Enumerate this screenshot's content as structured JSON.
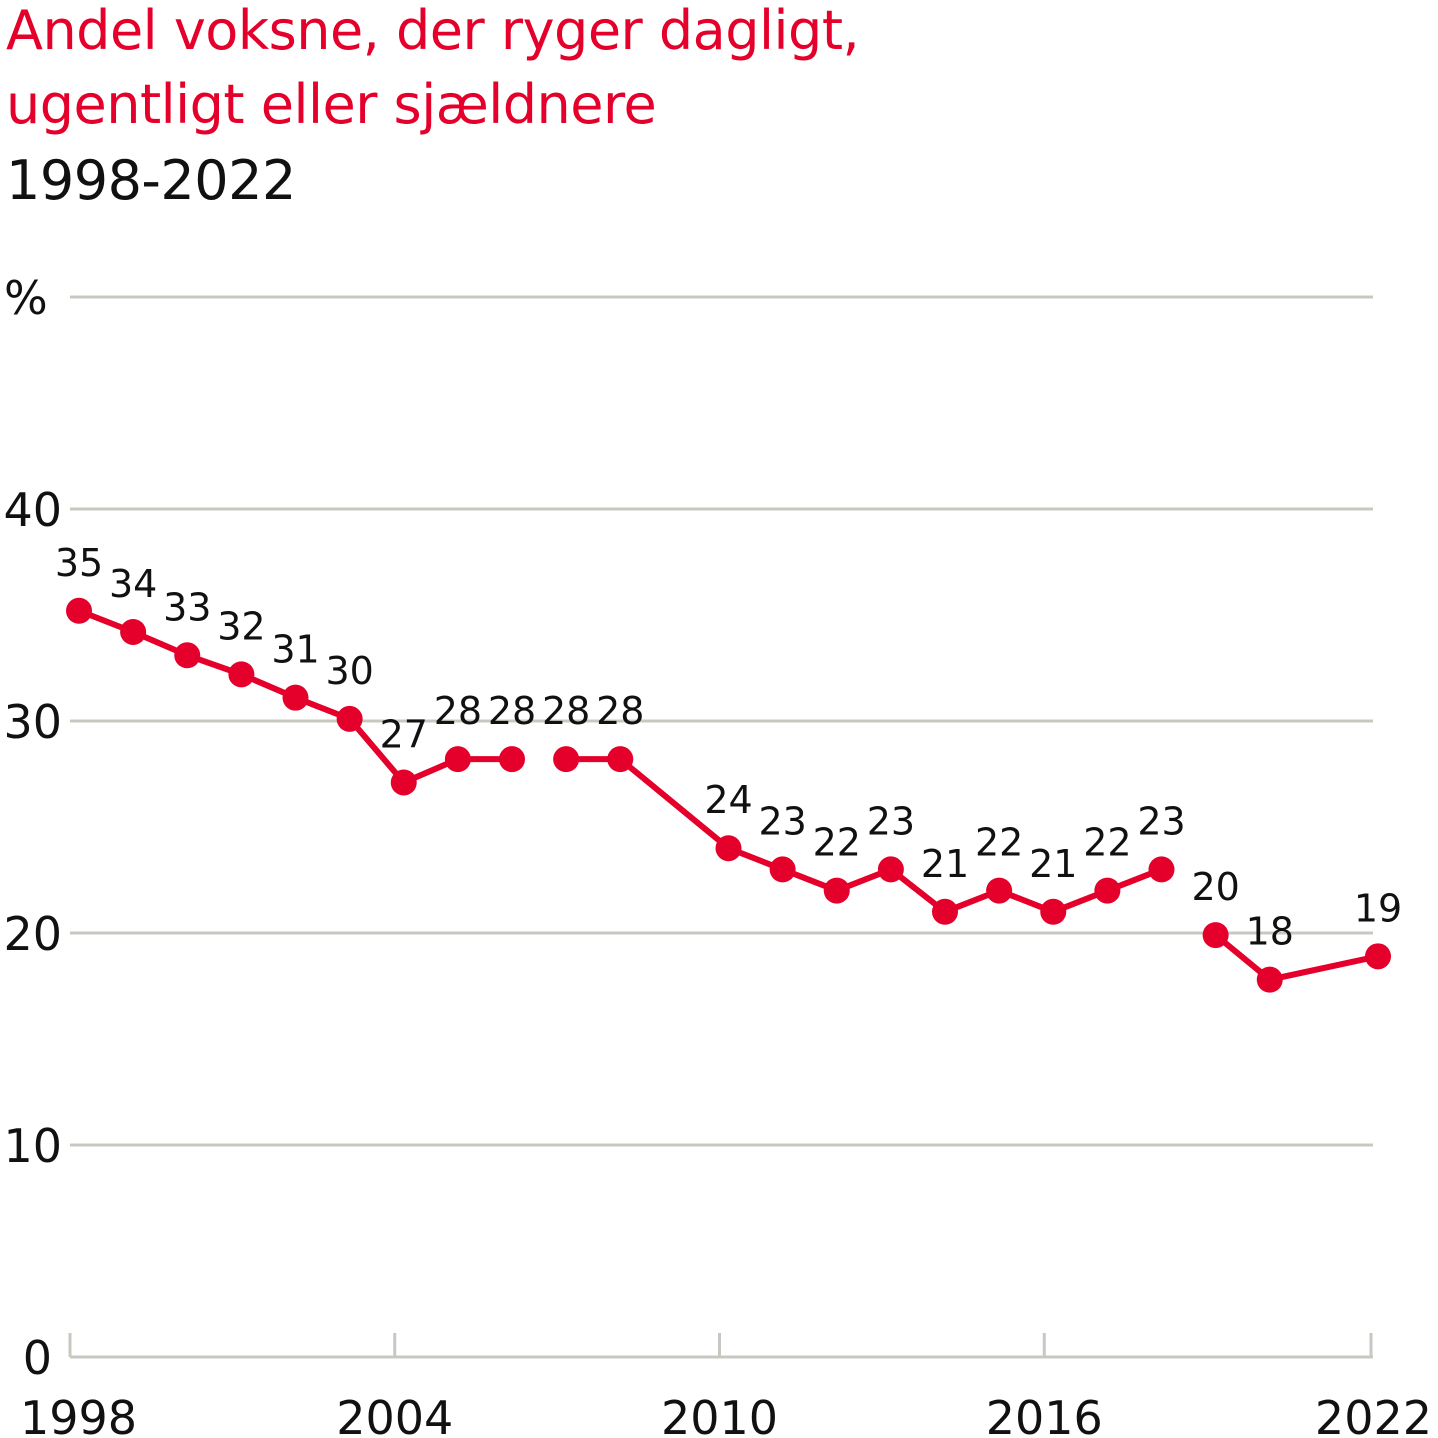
{
  "header": {
    "title_line1": "Andel voksne, der ryger dagligt,",
    "title_line2": "ugentligt eller sjældnere",
    "subtitle": "1998-2022"
  },
  "colors": {
    "series": "#e4002b",
    "grid": "#c8c8c0",
    "text": "#111111"
  },
  "chart_data": {
    "type": "line",
    "title": "Andel voksne, der ryger dagligt, ugentligt eller sjældnere",
    "subtitle": "1998-2022",
    "ylabel": "%",
    "xlabel": "",
    "ylim": [
      0,
      50
    ],
    "xlim": [
      1998,
      2022
    ],
    "y_ticks": [
      0,
      10,
      20,
      30,
      40
    ],
    "x_ticks": [
      1998,
      2004,
      2010,
      2016,
      2022
    ],
    "grid": true,
    "series": [
      {
        "name": "Andel voksne, der ryger",
        "segments": [
          {
            "points": [
              {
                "year": 1998,
                "value": 35.2,
                "label": "35"
              },
              {
                "year": 1999,
                "value": 34.2,
                "label": "34"
              },
              {
                "year": 2000,
                "value": 33.1,
                "label": "33"
              },
              {
                "year": 2001,
                "value": 32.2,
                "label": "32"
              },
              {
                "year": 2002,
                "value": 31.1,
                "label": "31"
              },
              {
                "year": 2003,
                "value": 30.1,
                "label": "30"
              },
              {
                "year": 2004,
                "value": 27.1,
                "label": "27"
              },
              {
                "year": 2005,
                "value": 28.2,
                "label": "28"
              },
              {
                "year": 2006,
                "value": 28.2,
                "label": "28"
              }
            ]
          },
          {
            "points": [
              {
                "year": 2007,
                "value": 28.2,
                "label": "28"
              },
              {
                "year": 2008,
                "value": 28.2,
                "label": "28"
              },
              {
                "year": 2010,
                "value": 24.0,
                "label": "24"
              },
              {
                "year": 2011,
                "value": 23.0,
                "label": "23"
              },
              {
                "year": 2012,
                "value": 22.0,
                "label": "22"
              },
              {
                "year": 2013,
                "value": 23.0,
                "label": "23"
              },
              {
                "year": 2014,
                "value": 21.0,
                "label": "21"
              },
              {
                "year": 2015,
                "value": 22.0,
                "label": "22"
              },
              {
                "year": 2016,
                "value": 21.0,
                "label": "21"
              },
              {
                "year": 2017,
                "value": 22.0,
                "label": "22"
              },
              {
                "year": 2018,
                "value": 23.0,
                "label": "23"
              }
            ]
          },
          {
            "points": [
              {
                "year": 2019,
                "value": 19.9,
                "label": "20"
              },
              {
                "year": 2020,
                "value": 17.8,
                "label": "18"
              },
              {
                "year": 2022,
                "value": 18.9,
                "label": "19"
              }
            ]
          }
        ]
      }
    ]
  }
}
